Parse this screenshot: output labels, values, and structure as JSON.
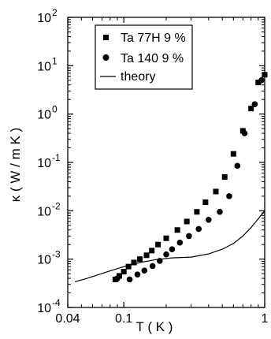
{
  "chart_data": {
    "type": "scatter",
    "xlabel": "T  ( K )",
    "ylabel": "κ ( W / m K )",
    "xscale": "log",
    "yscale": "log",
    "xlim": [
      0.04,
      1
    ],
    "ylim": [
      0.0001,
      100
    ],
    "grid": false,
    "legend_position": "top-left",
    "x_ticks": [
      {
        "value": 0.04,
        "label": "0.04"
      },
      {
        "value": 0.1,
        "label": "0.1"
      },
      {
        "value": 1,
        "label": "1"
      }
    ],
    "y_ticks": [
      {
        "value": 0.0001,
        "base": "10",
        "exp": "-4"
      },
      {
        "value": 0.001,
        "base": "10",
        "exp": "-3"
      },
      {
        "value": 0.01,
        "base": "10",
        "exp": "-2"
      },
      {
        "value": 0.1,
        "base": "10",
        "exp": "-1"
      },
      {
        "value": 1,
        "base": "10",
        "exp": "0"
      },
      {
        "value": 10,
        "base": "10",
        "exp": "1"
      },
      {
        "value": 100,
        "base": "10",
        "exp": "2"
      }
    ],
    "series": [
      {
        "name": "Ta 77H 9 %",
        "marker": "square",
        "x": [
          0.087,
          0.093,
          0.1,
          0.108,
          0.118,
          0.13,
          0.145,
          0.158,
          0.175,
          0.2,
          0.24,
          0.28,
          0.33,
          0.38,
          0.45,
          0.52,
          0.6,
          0.7,
          0.8,
          0.9,
          1.0
        ],
        "y": [
          0.00038,
          0.00045,
          0.00055,
          0.0007,
          0.00085,
          0.001,
          0.0012,
          0.0015,
          0.002,
          0.0027,
          0.004,
          0.006,
          0.0095,
          0.015,
          0.025,
          0.05,
          0.15,
          0.45,
          1.3,
          4.5,
          6.5
        ]
      },
      {
        "name": "Ta 140  9 %",
        "marker": "circle",
        "x": [
          0.09,
          0.11,
          0.125,
          0.14,
          0.16,
          0.18,
          0.2,
          0.22,
          0.25,
          0.29,
          0.34,
          0.4,
          0.48,
          0.56,
          0.64,
          0.72,
          0.85,
          0.95
        ],
        "y": [
          0.0004,
          0.00038,
          0.00048,
          0.00058,
          0.00072,
          0.00092,
          0.00125,
          0.0016,
          0.0022,
          0.003,
          0.0042,
          0.0065,
          0.0095,
          0.02,
          0.085,
          0.4,
          1.6,
          5.0
        ]
      },
      {
        "name": "theory",
        "marker": "line",
        "x": [
          0.045,
          0.055,
          0.065,
          0.08,
          0.1,
          0.13,
          0.17,
          0.22,
          0.3,
          0.4,
          0.5,
          0.6,
          0.7,
          0.8,
          0.9,
          1.0
        ],
        "y": [
          0.00034,
          0.0004,
          0.00047,
          0.00057,
          0.0007,
          0.00085,
          0.00098,
          0.00106,
          0.0011,
          0.00128,
          0.0016,
          0.0021,
          0.003,
          0.0045,
          0.0068,
          0.01
        ]
      }
    ]
  }
}
